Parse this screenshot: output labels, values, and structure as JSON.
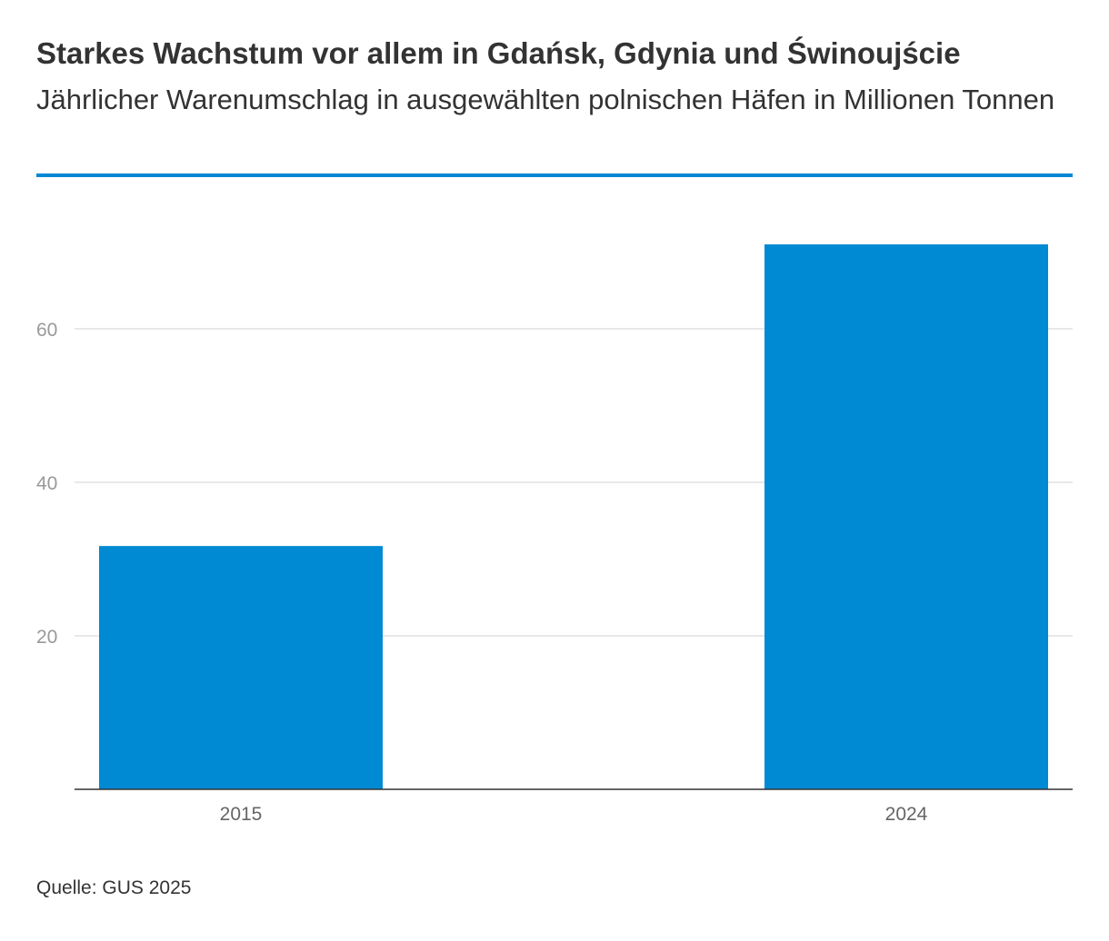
{
  "header": {
    "title": "Starkes Wachstum vor allem in Gdańsk, Gdynia und Świnoujście",
    "subtitle": "Jährlicher Warenumschlag in ausgewählten polnischen Häfen in Millionen Tonnen"
  },
  "footer": {
    "source": "Quelle: GUS 2025"
  },
  "colors": {
    "accent": "#0088d4",
    "bar": "#008ad3",
    "grid": "#e0e0e0",
    "axis": "#333333",
    "tick_label": "#999999",
    "category_label": "#666666"
  },
  "chart_data": {
    "type": "bar",
    "title": "Starkes Wachstum vor allem in Gdańsk, Gdynia und Świnoujście",
    "subtitle": "Jährlicher Warenumschlag in ausgewählten polnischen Häfen in Millionen Tonnen",
    "categories": [
      "2015",
      "2024"
    ],
    "values": [
      31.7,
      71.0
    ],
    "xlabel": "",
    "ylabel": "",
    "ylim": [
      0,
      80
    ],
    "yticks": [
      20,
      40,
      60
    ],
    "grid": true,
    "legend": "none"
  }
}
